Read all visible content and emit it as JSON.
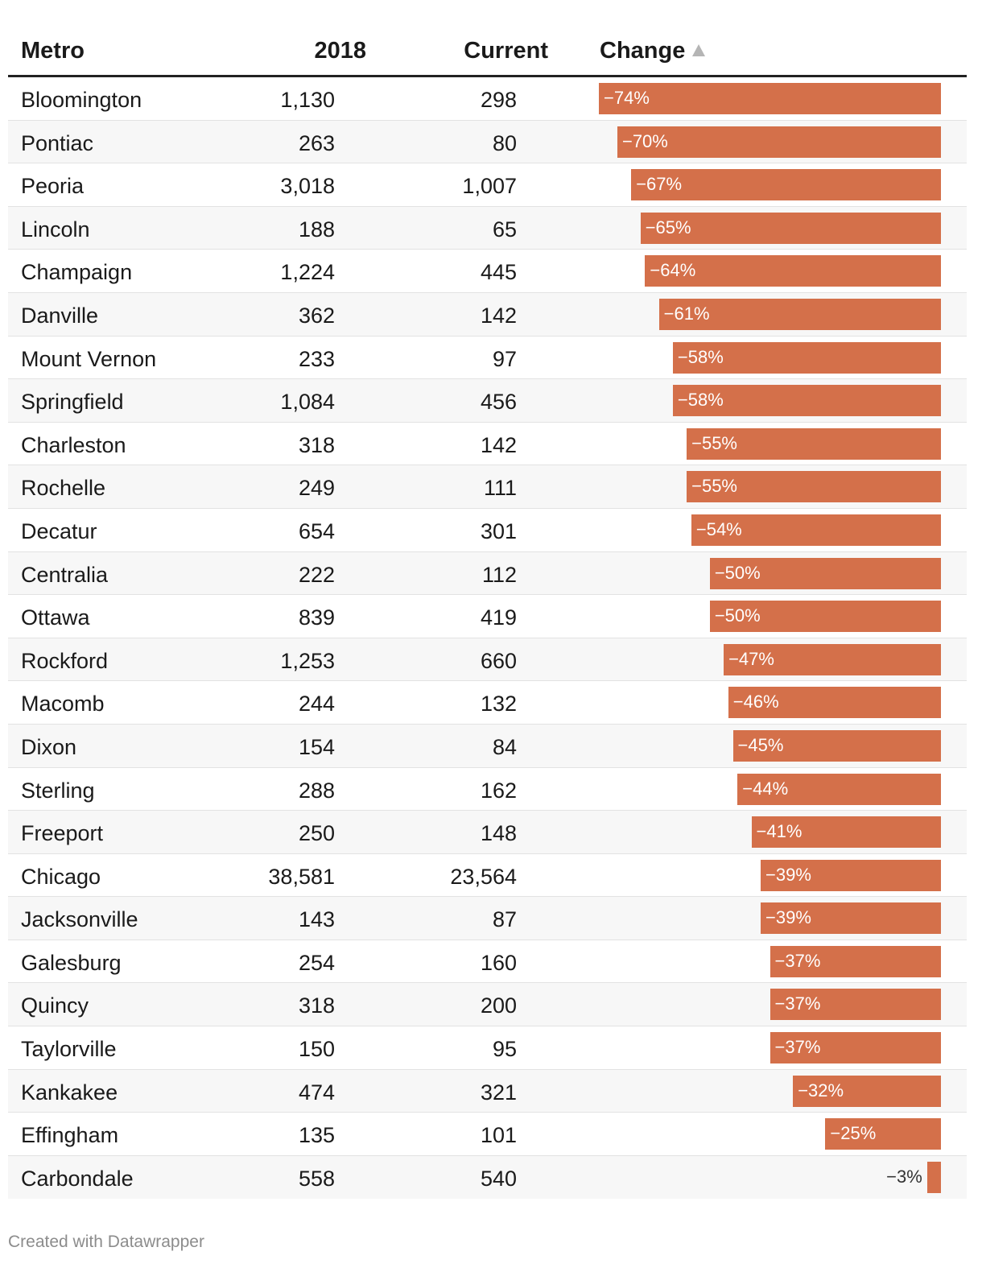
{
  "header": {
    "metro": "Metro",
    "y2018": "2018",
    "current": "Current",
    "change": "Change"
  },
  "footer": "Created with Datawrapper",
  "colors": {
    "bar": "#d4704a",
    "header_rule": "#222222",
    "row_alt": "#f7f7f7",
    "sort_arrow": "#b5b5b5"
  },
  "sort": {
    "column": "change",
    "direction": "ascending",
    "icon": "sort-up-icon"
  },
  "chart_data": {
    "type": "table",
    "columns": [
      "Metro",
      "2018",
      "Current",
      "Change"
    ],
    "change_range": [
      -74,
      0
    ],
    "rows": [
      {
        "metro": "Bloomington",
        "y2018": "1,130",
        "current": "298",
        "change": -74,
        "change_label": "−74%"
      },
      {
        "metro": "Pontiac",
        "y2018": "263",
        "current": "80",
        "change": -70,
        "change_label": "−70%"
      },
      {
        "metro": "Peoria",
        "y2018": "3,018",
        "current": "1,007",
        "change": -67,
        "change_label": "−67%"
      },
      {
        "metro": "Lincoln",
        "y2018": "188",
        "current": "65",
        "change": -65,
        "change_label": "−65%"
      },
      {
        "metro": "Champaign",
        "y2018": "1,224",
        "current": "445",
        "change": -64,
        "change_label": "−64%"
      },
      {
        "metro": "Danville",
        "y2018": "362",
        "current": "142",
        "change": -61,
        "change_label": "−61%"
      },
      {
        "metro": "Mount Vernon",
        "y2018": "233",
        "current": "97",
        "change": -58,
        "change_label": "−58%"
      },
      {
        "metro": "Springfield",
        "y2018": "1,084",
        "current": "456",
        "change": -58,
        "change_label": "−58%"
      },
      {
        "metro": "Charleston",
        "y2018": "318",
        "current": "142",
        "change": -55,
        "change_label": "−55%"
      },
      {
        "metro": "Rochelle",
        "y2018": "249",
        "current": "111",
        "change": -55,
        "change_label": "−55%"
      },
      {
        "metro": "Decatur",
        "y2018": "654",
        "current": "301",
        "change": -54,
        "change_label": "−54%"
      },
      {
        "metro": "Centralia",
        "y2018": "222",
        "current": "112",
        "change": -50,
        "change_label": "−50%"
      },
      {
        "metro": "Ottawa",
        "y2018": "839",
        "current": "419",
        "change": -50,
        "change_label": "−50%"
      },
      {
        "metro": "Rockford",
        "y2018": "1,253",
        "current": "660",
        "change": -47,
        "change_label": "−47%"
      },
      {
        "metro": "Macomb",
        "y2018": "244",
        "current": "132",
        "change": -46,
        "change_label": "−46%"
      },
      {
        "metro": "Dixon",
        "y2018": "154",
        "current": "84",
        "change": -45,
        "change_label": "−45%"
      },
      {
        "metro": "Sterling",
        "y2018": "288",
        "current": "162",
        "change": -44,
        "change_label": "−44%"
      },
      {
        "metro": "Freeport",
        "y2018": "250",
        "current": "148",
        "change": -41,
        "change_label": "−41%"
      },
      {
        "metro": "Chicago",
        "y2018": "38,581",
        "current": "23,564",
        "change": -39,
        "change_label": "−39%"
      },
      {
        "metro": "Jacksonville",
        "y2018": "143",
        "current": "87",
        "change": -39,
        "change_label": "−39%"
      },
      {
        "metro": "Galesburg",
        "y2018": "254",
        "current": "160",
        "change": -37,
        "change_label": "−37%"
      },
      {
        "metro": "Quincy",
        "y2018": "318",
        "current": "200",
        "change": -37,
        "change_label": "−37%"
      },
      {
        "metro": "Taylorville",
        "y2018": "150",
        "current": "95",
        "change": -37,
        "change_label": "−37%"
      },
      {
        "metro": "Kankakee",
        "y2018": "474",
        "current": "321",
        "change": -32,
        "change_label": "−32%"
      },
      {
        "metro": "Effingham",
        "y2018": "135",
        "current": "101",
        "change": -25,
        "change_label": "−25%"
      },
      {
        "metro": "Carbondale",
        "y2018": "558",
        "current": "540",
        "change": -3,
        "change_label": "−3%"
      }
    ]
  }
}
